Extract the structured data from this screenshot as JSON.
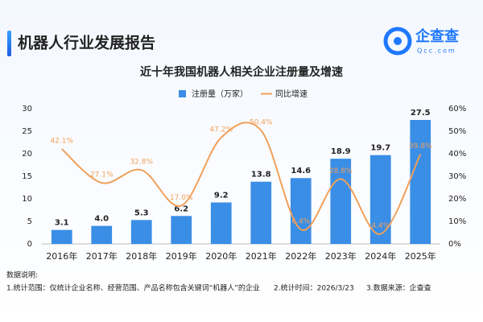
{
  "header": {
    "title": "机器人行业发展报告",
    "logo_name": "企查查",
    "logo_domain": "Qcc.com"
  },
  "chart_data": {
    "type": "bar_line",
    "title": "近十年我国机器人相关企业注册量及增速",
    "categories": [
      "2016年",
      "2017年",
      "2018年",
      "2019年",
      "2020年",
      "2021年",
      "2022年",
      "2023年",
      "2024年",
      "2025年"
    ],
    "series": [
      {
        "name": "注册量（万家）",
        "color": "#3a8ee6",
        "type": "bar",
        "values": [
          3.1,
          4.0,
          5.3,
          6.2,
          9.2,
          13.8,
          14.6,
          18.9,
          19.7,
          27.5
        ],
        "value_labels": [
          "3.1",
          "4.0",
          "5.3",
          "6.2",
          "9.2",
          "13.8",
          "14.6",
          "18.9",
          "19.7",
          "27.5"
        ]
      },
      {
        "name": "同比增速",
        "color": "#f0a05a",
        "type": "line",
        "axis": "y2",
        "values": [
          42.1,
          27.1,
          32.8,
          17.0,
          47.2,
          50.4,
          6.4,
          28.8,
          4.4,
          39.8
        ],
        "value_labels": [
          "42.1%",
          "27.1%",
          "32.8%",
          "17.0%",
          "47.2%",
          "50.4%",
          "6.4%",
          "28.8%",
          "4.4%",
          "39.8%"
        ]
      }
    ],
    "ylim": [
      0,
      30
    ],
    "yticks": [
      0,
      5,
      10,
      15,
      20,
      25,
      30
    ],
    "y2lim": [
      0,
      60
    ],
    "y2ticks": [
      {
        "value": 0,
        "label": "0%"
      },
      {
        "value": 10,
        "label": "10%"
      },
      {
        "value": 20,
        "label": "20%"
      },
      {
        "value": 30,
        "label": "30%"
      },
      {
        "value": 40,
        "label": "40%"
      },
      {
        "value": 50,
        "label": "50%"
      },
      {
        "value": 60,
        "label": "60%"
      }
    ],
    "grid": false,
    "legend": "top"
  },
  "notes": [
    "数据说明:",
    "1.统计范围：仅统计企业名称、经营范围、产品名称包含关键词“机器人”的企业",
    "2.统计时间：2026/3/23",
    "3.数据来源：企查查"
  ]
}
